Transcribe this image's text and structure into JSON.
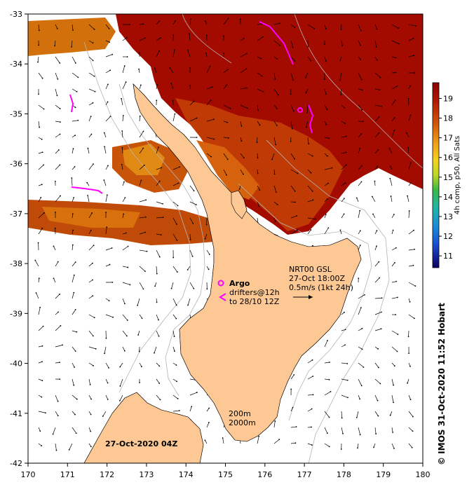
{
  "map": {
    "lon_range": [
      170,
      180
    ],
    "lat_range": [
      -42,
      -33
    ],
    "x_ticks": [
      "170",
      "171",
      "172",
      "173",
      "174",
      "175",
      "176",
      "177",
      "178",
      "179",
      "180"
    ],
    "y_ticks": [
      "-33",
      "-34",
      "-35",
      "-36",
      "-37",
      "-38",
      "-39",
      "-40",
      "-41",
      "-42"
    ],
    "land_color": "#fdc894",
    "current_vectors": "arrows",
    "contours": [
      "200m",
      "2000m"
    ]
  },
  "colorbar": {
    "ticks": [
      "19",
      "18",
      "17",
      "16",
      "15",
      "14",
      "13",
      "12",
      "11"
    ],
    "title": "4h comp, p50, All Sats",
    "colors": [
      "#8b0000",
      "#b22000",
      "#d2560a",
      "#e8941a",
      "#f2c41c",
      "#e6e11a",
      "#a6d12b",
      "#36b24a",
      "#1fb3a3",
      "#1a8fd6",
      "#1a4fd0",
      "#1a1fa0",
      "#0a0060"
    ]
  },
  "annotations": {
    "argo": "Argo",
    "drifters_line1": "drifters@12h",
    "drifters_line2": "to 28/10 12Z",
    "nrt_line1": "NRT00 GSL",
    "nrt_line2": "27-Oct 18:00Z",
    "nrt_line3": "0.5m/s (1kt 24h)",
    "depth_200": "200m",
    "depth_2000": "2000m",
    "date": "27-Oct-2020 04Z",
    "credit": "© IMOS 31-Oct-2020 11:52 Hobart"
  },
  "colors": {
    "sst_warm": "#a00a00",
    "sst_mid": "#c83c00",
    "sst_cool": "#e08a10",
    "argo_magenta": "#ff00ff"
  }
}
